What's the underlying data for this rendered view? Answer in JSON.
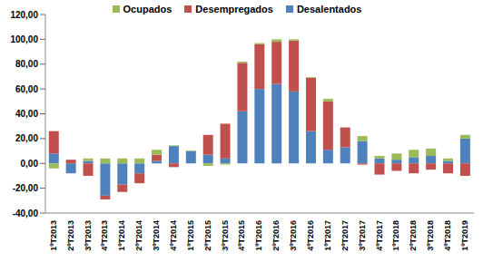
{
  "chart_data": {
    "type": "bar",
    "stacked": true,
    "legend": "top",
    "grid": false,
    "categories": [
      "1ºT2013",
      "2ºT2013",
      "3ºT2013",
      "4ºT2013",
      "1ºT2014",
      "2ºT2014",
      "3ºT2014",
      "4ºT2014",
      "1ºT2015",
      "2ºT2015",
      "3ºT2015",
      "4ºT2015",
      "1ºT2016",
      "2ºT2016",
      "3ºT2016",
      "4ºT2016",
      "1ºT2017",
      "2ºT2017",
      "3ºT2017",
      "4ºT2017",
      "1ºT2018",
      "2ºT2018",
      "3ºT2018",
      "4ºT2018",
      "1ºT2019"
    ],
    "series": [
      {
        "name": "Ocupados",
        "color": "#9bbb59",
        "values": [
          -4,
          0,
          2,
          4,
          4,
          4,
          4,
          0.5,
          0.5,
          -2,
          -1,
          1,
          1,
          2,
          1,
          0.5,
          2,
          0,
          4,
          2,
          5,
          6,
          6,
          2,
          3
        ]
      },
      {
        "name": "Desempregados",
        "color": "#c0504d",
        "values": [
          18,
          3,
          -10,
          -3,
          -6,
          -8,
          5,
          -3,
          0,
          16,
          28,
          39,
          36,
          34,
          41,
          43,
          39,
          16,
          -1,
          -9,
          -6,
          -8,
          -5,
          -8,
          -10
        ]
      },
      {
        "name": "Desalentados",
        "color": "#4f81bd",
        "values": [
          8,
          -8,
          2,
          -26,
          -17,
          -8,
          2,
          14,
          10,
          7,
          4,
          42,
          60,
          64,
          58,
          26,
          11,
          13,
          18,
          4,
          3,
          5,
          6,
          2,
          20
        ]
      }
    ],
    "ylim": [
      -40,
      120
    ],
    "yticks": [
      {
        "value": -40,
        "label": "-40,00"
      },
      {
        "value": -20,
        "label": "-20,00"
      },
      {
        "value": 0,
        "label": "0,00"
      },
      {
        "value": 20,
        "label": "20,00"
      },
      {
        "value": 40,
        "label": "40,00"
      },
      {
        "value": 60,
        "label": "60,00"
      },
      {
        "value": 80,
        "label": "80,00"
      },
      {
        "value": 100,
        "label": "100,00"
      },
      {
        "value": 120,
        "label": "120,00"
      }
    ]
  }
}
